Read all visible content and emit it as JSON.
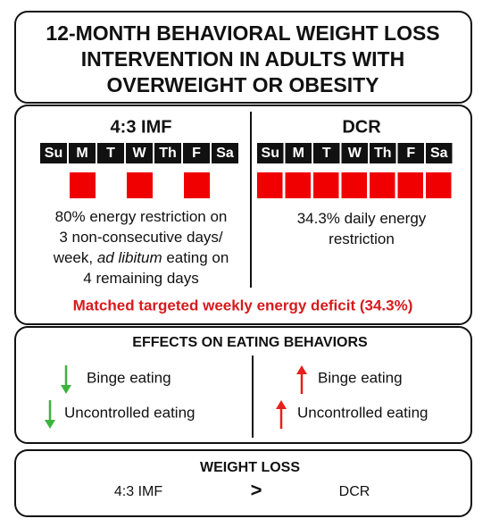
{
  "title_lines": [
    "12-MONTH BEHAVIORAL WEIGHT LOSS",
    "INTERVENTION IN ADULTS WITH",
    "OVERWEIGHT OR OBESITY"
  ],
  "left": {
    "heading": "4:3 IMF",
    "days": [
      "Su",
      "M",
      "T",
      "W",
      "Th",
      "F",
      "Sa"
    ],
    "restricted": [
      false,
      true,
      false,
      true,
      false,
      true,
      false
    ],
    "description_lines": [
      [
        "80% energy restriction on"
      ],
      [
        "3 non-consecutive days/"
      ],
      [
        "week, ",
        "ad libitum",
        " eating on"
      ],
      [
        "4 remaining days"
      ]
    ]
  },
  "right": {
    "heading": "DCR",
    "days": [
      "Su",
      "M",
      "T",
      "W",
      "Th",
      "F",
      "Sa"
    ],
    "restricted": [
      true,
      true,
      true,
      true,
      true,
      true,
      true
    ],
    "description_lines": [
      [
        "34.3% daily energy"
      ],
      [
        "restriction"
      ]
    ]
  },
  "matched_note": "Matched targeted weekly energy deficit (34.3%)",
  "effects": {
    "heading": "EFFECTS ON EATING BEHAVIORS",
    "left": [
      {
        "label": "Binge eating",
        "direction": "down"
      },
      {
        "label": "Uncontrolled eating",
        "direction": "down"
      }
    ],
    "right": [
      {
        "label": "Binge eating",
        "direction": "up"
      },
      {
        "label": "Uncontrolled eating",
        "direction": "up"
      }
    ]
  },
  "weight_loss": {
    "heading": "WEIGHT LOSS",
    "left": "4:3 IMF",
    "comparator": ">",
    "right": "DCR"
  }
}
